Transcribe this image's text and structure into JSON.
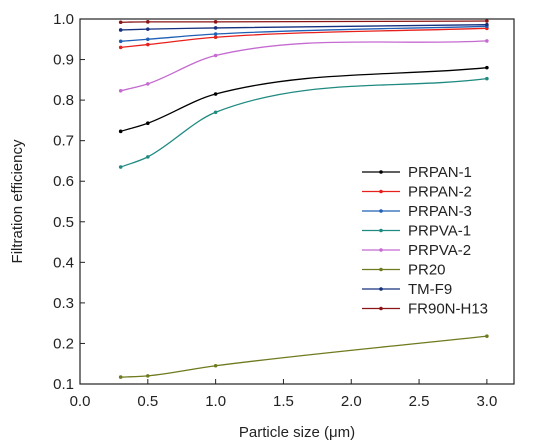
{
  "chart_data": {
    "type": "line",
    "title": "",
    "xlabel": "Particle size (μm)",
    "ylabel": "Filtration efficiency",
    "xlim": [
      0.0,
      3.2
    ],
    "ylim": [
      0.1,
      1.0
    ],
    "xticks": [
      0.0,
      0.5,
      1.0,
      1.5,
      2.0,
      2.5,
      3.0
    ],
    "yticks": [
      0.1,
      0.2,
      0.3,
      0.4,
      0.5,
      0.6,
      0.7,
      0.8,
      0.9,
      1.0
    ],
    "xtick_labels": [
      "0.0",
      "0.5",
      "1.0",
      "1.5",
      "2.0",
      "2.5",
      "3.0"
    ],
    "ytick_labels": [
      "0.1",
      "0.2",
      "0.3",
      "0.4",
      "0.5",
      "0.6",
      "0.7",
      "0.8",
      "0.9",
      "1.0"
    ],
    "grid": false,
    "legend_position": "right",
    "series": [
      {
        "name": "PRPAN-1",
        "color": "#000000",
        "x": [
          0.3,
          0.5,
          1.0,
          3.0
        ],
        "y": [
          0.723,
          0.743,
          0.815,
          0.88
        ]
      },
      {
        "name": "PRPAN-2",
        "color": "#e8201c",
        "x": [
          0.3,
          0.5,
          1.0,
          3.0
        ],
        "y": [
          0.93,
          0.937,
          0.955,
          0.977
        ]
      },
      {
        "name": "PRPAN-3",
        "color": "#1f5fb5",
        "x": [
          0.3,
          0.5,
          1.0,
          3.0
        ],
        "y": [
          0.945,
          0.95,
          0.963,
          0.982
        ]
      },
      {
        "name": "PRPVA-1",
        "color": "#1e8a80",
        "x": [
          0.3,
          0.5,
          1.0,
          3.0
        ],
        "y": [
          0.635,
          0.66,
          0.77,
          0.853
        ]
      },
      {
        "name": "PRPVA-2",
        "color": "#c46ad0",
        "x": [
          0.3,
          0.5,
          1.0,
          3.0
        ],
        "y": [
          0.823,
          0.84,
          0.91,
          0.946
        ]
      },
      {
        "name": "PR20",
        "color": "#6f7a1e",
        "x": [
          0.3,
          0.5,
          1.0,
          3.0
        ],
        "y": [
          0.117,
          0.12,
          0.145,
          0.218
        ]
      },
      {
        "name": "TM-F9",
        "color": "#14307e",
        "x": [
          0.3,
          0.5,
          1.0,
          3.0
        ],
        "y": [
          0.973,
          0.975,
          0.978,
          0.986
        ]
      },
      {
        "name": "FR90N-H13",
        "color": "#8a1414",
        "x": [
          0.3,
          0.5,
          1.0,
          3.0
        ],
        "y": [
          0.992,
          0.993,
          0.993,
          0.995
        ]
      }
    ]
  }
}
